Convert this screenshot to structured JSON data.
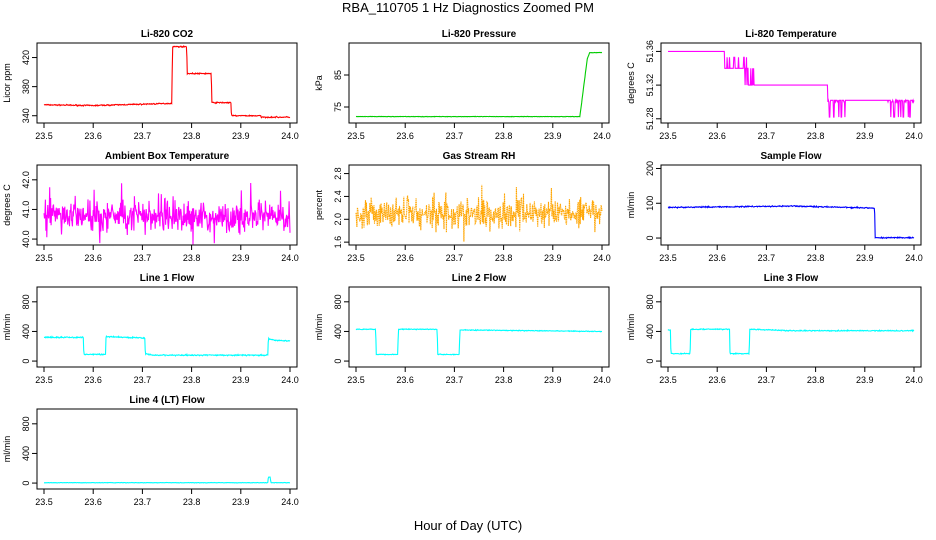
{
  "figure": {
    "title": "RBA_110705  1 Hz Diagnostics Zoomed PM",
    "xlabel": "Hour of Day (UTC)"
  },
  "chart_data": [
    {
      "type": "line",
      "title": "Li-820 CO2",
      "ylabel": "Licor ppm",
      "xlim": [
        23.5,
        24.0
      ],
      "ylim": [
        330,
        440
      ],
      "xticks": [
        "23.5",
        "23.6",
        "23.7",
        "23.8",
        "23.9",
        "24.0"
      ],
      "yticks": [
        "340",
        "380",
        "420"
      ],
      "yvals": [
        340,
        380,
        420
      ],
      "color": "#ff0000",
      "noise": 1.2,
      "series": [
        {
          "name": "CO2",
          "x": [
            23.5,
            23.6,
            23.76,
            23.761,
            23.79,
            23.791,
            23.84,
            23.841,
            23.88,
            23.881,
            23.94,
            23.941,
            24.0
          ],
          "values": [
            355,
            354,
            357,
            435,
            435,
            398,
            398,
            358,
            358,
            340,
            340,
            338,
            338
          ]
        }
      ]
    },
    {
      "type": "line",
      "title": "Li-820 Pressure",
      "ylabel": "kPa",
      "xlim": [
        23.5,
        24.0
      ],
      "ylim": [
        70,
        95
      ],
      "xticks": [
        "23.5",
        "23.6",
        "23.7",
        "23.8",
        "23.9",
        "24.0"
      ],
      "yticks": [
        "75",
        "85"
      ],
      "yvals": [
        75,
        85
      ],
      "color": "#00cc00",
      "noise": 0.1,
      "series": [
        {
          "name": "Pressure",
          "x": [
            23.5,
            23.94,
            23.955,
            23.97,
            23.975,
            24.0
          ],
          "values": [
            72,
            72,
            72,
            90,
            92,
            92
          ]
        }
      ]
    },
    {
      "type": "line",
      "title": "Li-820 Temperature",
      "ylabel": "degrees C",
      "xlim": [
        23.5,
        24.0
      ],
      "ylim": [
        51.275,
        51.37
      ],
      "xticks": [
        "23.5",
        "23.6",
        "23.7",
        "23.8",
        "23.9",
        "24.0"
      ],
      "yticks": [
        "51.28",
        "51.32",
        "51.36"
      ],
      "yvals": [
        51.28,
        51.32,
        51.36
      ],
      "color": "#ff00ff",
      "noise": 0,
      "mode": "stairs",
      "flicker": [
        [
          23.615,
          23.66,
          51.34,
          51.353
        ],
        [
          23.655,
          23.68,
          51.32,
          51.34
        ],
        [
          23.825,
          23.86,
          51.282,
          51.3
        ],
        [
          23.945,
          24.0,
          51.282,
          51.3
        ]
      ],
      "series": [
        {
          "name": "Temperature",
          "x": [
            23.5,
            23.615,
            23.615,
            23.66,
            23.66,
            23.825,
            23.825,
            24.0
          ],
          "values": [
            51.36,
            51.36,
            51.34,
            51.34,
            51.32,
            51.32,
            51.302,
            51.302
          ]
        }
      ]
    },
    {
      "type": "line",
      "title": "Ambient Box Temperature",
      "ylabel": "degrees C",
      "xlim": [
        23.5,
        24.0
      ],
      "ylim": [
        39.8,
        42.5
      ],
      "xticks": [
        "23.5",
        "23.6",
        "23.7",
        "23.8",
        "23.9",
        "24.0"
      ],
      "yticks": [
        "40.0",
        "41.0",
        "42.0"
      ],
      "yvals": [
        40,
        41,
        42
      ],
      "color": "#ff00ff",
      "noise": 0.55,
      "mode": "noisy",
      "series": [
        {
          "name": "Box Temp",
          "x": [
            23.5,
            24.0
          ],
          "values": [
            40.8,
            40.7
          ]
        }
      ]
    },
    {
      "type": "line",
      "title": "Gas Stream RH",
      "ylabel": "percent",
      "xlim": [
        23.5,
        24.0
      ],
      "ylim": [
        1.55,
        2.95
      ],
      "xticks": [
        "23.5",
        "23.6",
        "23.7",
        "23.8",
        "23.9",
        "24.0"
      ],
      "yticks": [
        "1.6",
        "2.0",
        "2.4",
        "2.8"
      ],
      "yvals": [
        1.6,
        2.0,
        2.4,
        2.8
      ],
      "color": "#ffa500",
      "noise": 0.28,
      "mode": "noisy",
      "dotted": true,
      "series": [
        {
          "name": "RH",
          "x": [
            23.5,
            24.0
          ],
          "values": [
            2.1,
            2.1
          ]
        }
      ]
    },
    {
      "type": "line",
      "title": "Sample Flow",
      "ylabel": "ml/min",
      "xlim": [
        23.5,
        24.0
      ],
      "ylim": [
        -20,
        210
      ],
      "xticks": [
        "23.5",
        "23.6",
        "23.7",
        "23.8",
        "23.9",
        "24.0"
      ],
      "yticks": [
        "0",
        "100",
        "200"
      ],
      "yvals": [
        0,
        100,
        200
      ],
      "color": "#0000ff",
      "noise": 2.5,
      "series": [
        {
          "name": "Sample Flow",
          "x": [
            23.5,
            23.75,
            23.92,
            23.921,
            24.0
          ],
          "values": [
            88,
            92,
            86,
            1,
            1
          ]
        }
      ]
    },
    {
      "type": "line",
      "title": "Line 1 Flow",
      "ylabel": "ml/min",
      "xlim": [
        23.5,
        24.0
      ],
      "ylim": [
        -80,
        1000
      ],
      "xticks": [
        "23.5",
        "23.6",
        "23.7",
        "23.8",
        "23.9",
        "24.0"
      ],
      "yticks": [
        "0",
        "400",
        "800"
      ],
      "yvals": [
        0,
        400,
        800
      ],
      "color": "#00ffff",
      "noise": 12,
      "series": [
        {
          "name": "Line 1",
          "x": [
            23.5,
            23.58,
            23.581,
            23.625,
            23.626,
            23.705,
            23.706,
            23.72,
            23.955,
            23.956,
            23.97,
            24.0
          ],
          "values": [
            320,
            320,
            90,
            90,
            330,
            310,
            100,
            80,
            80,
            300,
            280,
            270
          ]
        }
      ]
    },
    {
      "type": "line",
      "title": "Line 2 Flow",
      "ylabel": "ml/min",
      "xlim": [
        23.5,
        24.0
      ],
      "ylim": [
        -80,
        1000
      ],
      "xticks": [
        "23.5",
        "23.6",
        "23.7",
        "23.8",
        "23.9",
        "24.0"
      ],
      "yticks": [
        "0",
        "400",
        "800"
      ],
      "yvals": [
        0,
        400,
        800
      ],
      "color": "#00ffff",
      "noise": 8,
      "series": [
        {
          "name": "Line 2",
          "x": [
            23.5,
            23.54,
            23.541,
            23.585,
            23.586,
            23.665,
            23.666,
            23.71,
            23.711,
            24.0
          ],
          "values": [
            430,
            430,
            90,
            90,
            430,
            430,
            90,
            90,
            420,
            400
          ]
        }
      ]
    },
    {
      "type": "line",
      "title": "Line 3 Flow",
      "ylabel": "ml/min",
      "xlim": [
        23.5,
        24.0
      ],
      "ylim": [
        -80,
        1000
      ],
      "xticks": [
        "23.5",
        "23.6",
        "23.7",
        "23.8",
        "23.9",
        "24.0"
      ],
      "yticks": [
        "0",
        "400",
        "800"
      ],
      "yvals": [
        0,
        400,
        800
      ],
      "color": "#00ffff",
      "noise": 10,
      "series": [
        {
          "name": "Line 3",
          "x": [
            23.5,
            23.505,
            23.506,
            23.545,
            23.546,
            23.625,
            23.626,
            23.665,
            23.666,
            23.75,
            24.0
          ],
          "values": [
            420,
            420,
            100,
            100,
            430,
            430,
            100,
            100,
            430,
            410,
            410
          ]
        }
      ]
    },
    {
      "type": "line",
      "title": "Line 4 (LT) Flow",
      "ylabel": "ml/min",
      "xlim": [
        23.5,
        24.0
      ],
      "ylim": [
        -80,
        1000
      ],
      "xticks": [
        "23.5",
        "23.6",
        "23.7",
        "23.8",
        "23.9",
        "24.0"
      ],
      "yticks": [
        "0",
        "400",
        "800"
      ],
      "yvals": [
        0,
        400,
        800
      ],
      "color": "#00ffff",
      "noise": 4,
      "series": [
        {
          "name": "Line 4",
          "x": [
            23.5,
            23.955,
            23.956,
            23.96,
            23.961,
            24.0
          ],
          "values": [
            5,
            5,
            80,
            80,
            5,
            5
          ]
        }
      ]
    }
  ]
}
